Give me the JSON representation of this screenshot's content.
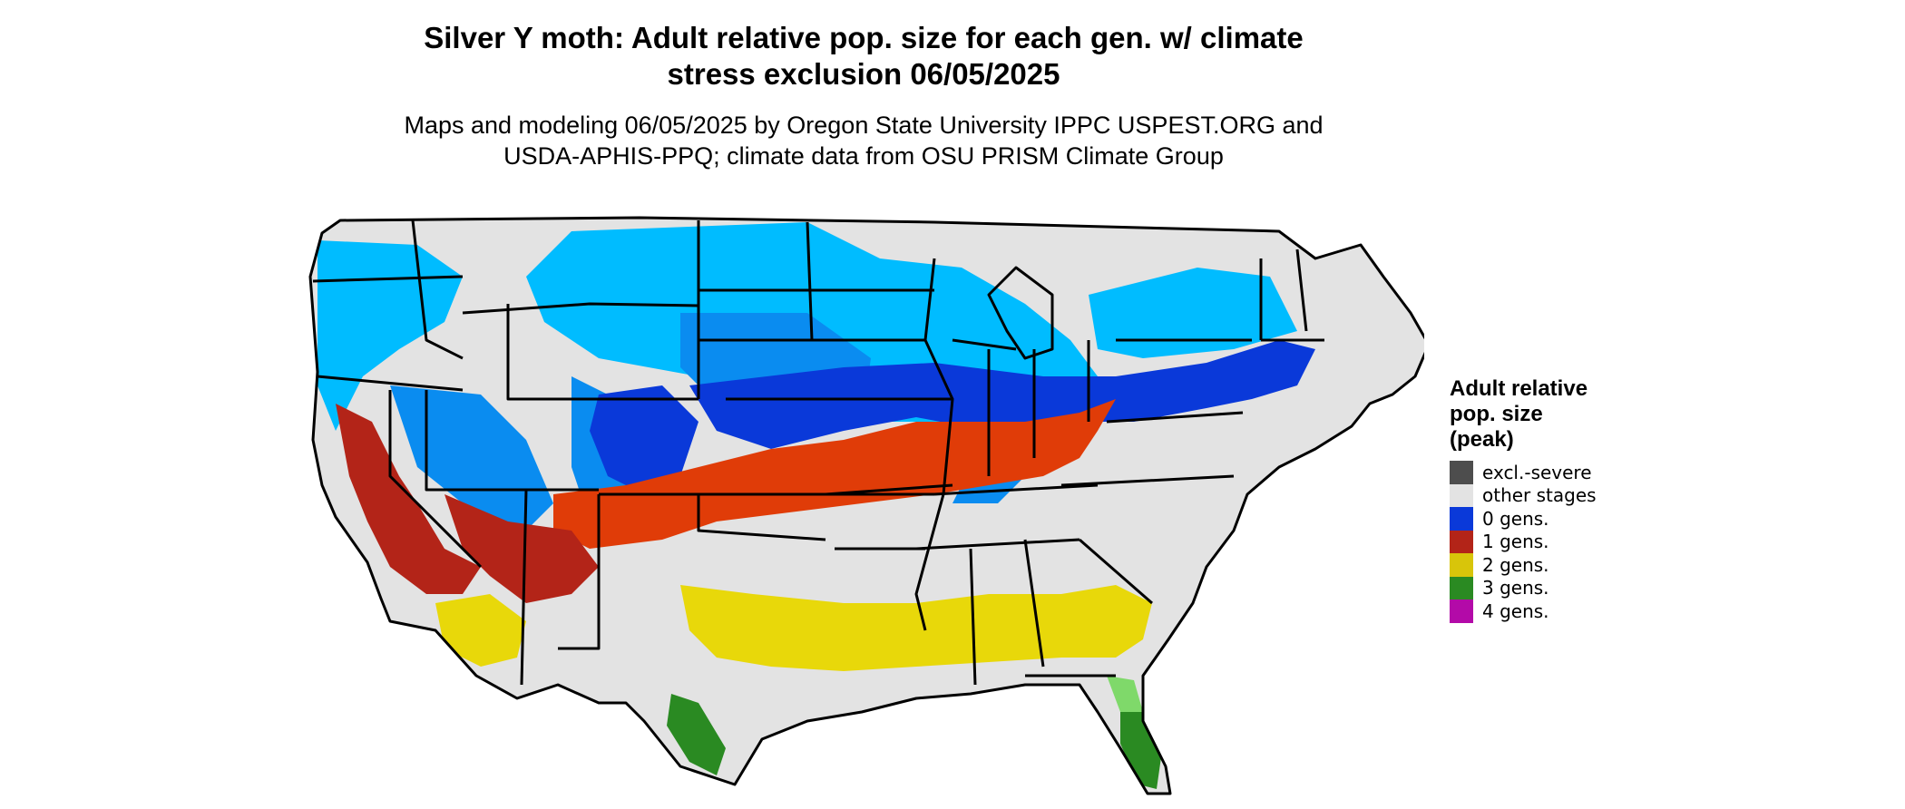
{
  "title": {
    "line1": "Silver Y moth: Adult relative pop. size for each gen. w/ climate",
    "line2": "stress exclusion 06/05/2025"
  },
  "subtitle": {
    "line1": "Maps and modeling 06/05/2025 by Oregon State University IPPC USPEST.ORG and",
    "line2": "USDA-APHIS-PPQ; climate data from OSU PRISM Climate Group"
  },
  "legend": {
    "title_line1": "Adult relative",
    "title_line2": "pop. size",
    "title_line3": "(peak)",
    "items": [
      {
        "label": "excl.-severe",
        "color": "#4d4d4d"
      },
      {
        "label": "other stages",
        "color": "#e3e3e3"
      },
      {
        "label": "0 gens.",
        "color": "#0a39d9"
      },
      {
        "label": "1 gens.",
        "color": "#b32418"
      },
      {
        "label": "2 gens.",
        "color": "#d8c50a"
      },
      {
        "label": "3 gens.",
        "color": "#2a8a22"
      },
      {
        "label": "4 gens.",
        "color": "#b30aa8"
      }
    ]
  },
  "map_colors": {
    "land": "#e3e3e3",
    "light_blue": "#00bcff",
    "mid_blue": "#0a8cf0",
    "dark_blue": "#0a39d9",
    "red": "#b32418",
    "orange_red": "#e03c08",
    "yellow": "#e8d80a",
    "green": "#2a8a22",
    "light_green": "#7fd96a",
    "magenta": "#c400c8",
    "border": "#000000"
  }
}
